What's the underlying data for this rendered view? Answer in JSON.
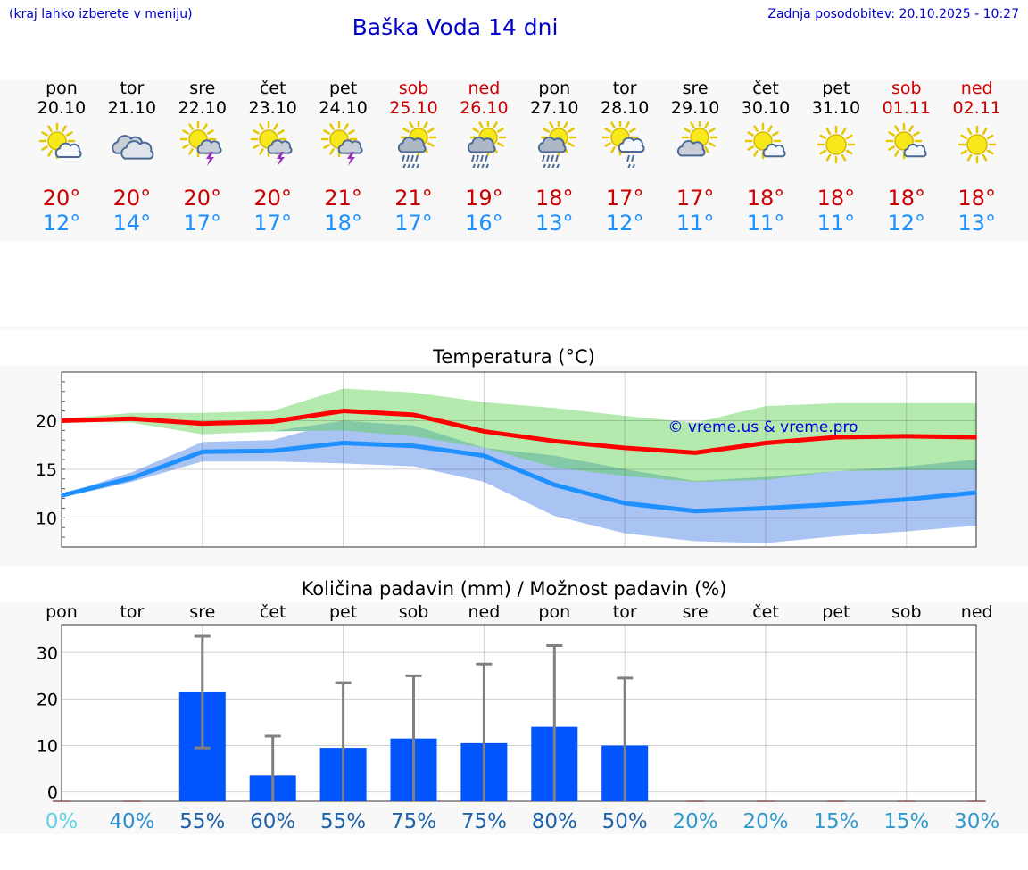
{
  "header": {
    "hint": "(kraj lahko izberete v meniju)",
    "title": "Baška Voda 14 dni",
    "updated": "Zadnja posodobitev: 20.10.2025 - 10:27"
  },
  "days": [
    {
      "name": "pon",
      "date": "20.10",
      "weekend": false,
      "icon": "sun-cloud-icon",
      "tmax": "20°",
      "tmin": "12°"
    },
    {
      "name": "tor",
      "date": "21.10",
      "weekend": false,
      "icon": "overcast-icon",
      "tmax": "20°",
      "tmin": "14°"
    },
    {
      "name": "sre",
      "date": "22.10",
      "weekend": false,
      "icon": "sun-thunder-icon",
      "tmax": "20°",
      "tmin": "17°"
    },
    {
      "name": "čet",
      "date": "23.10",
      "weekend": false,
      "icon": "sun-thunder-icon",
      "tmax": "20°",
      "tmin": "17°"
    },
    {
      "name": "pet",
      "date": "24.10",
      "weekend": false,
      "icon": "sun-thunder-icon",
      "tmax": "21°",
      "tmin": "18°"
    },
    {
      "name": "sob",
      "date": "25.10",
      "weekend": true,
      "icon": "sun-rain-icon",
      "tmax": "21°",
      "tmin": "17°"
    },
    {
      "name": "ned",
      "date": "26.10",
      "weekend": true,
      "icon": "sun-rain-icon",
      "tmax": "19°",
      "tmin": "16°"
    },
    {
      "name": "pon",
      "date": "27.10",
      "weekend": false,
      "icon": "sun-rain-icon",
      "tmax": "18°",
      "tmin": "13°"
    },
    {
      "name": "tor",
      "date": "28.10",
      "weekend": false,
      "icon": "sun-cloud-drizzle-icon",
      "tmax": "17°",
      "tmin": "12°"
    },
    {
      "name": "sre",
      "date": "29.10",
      "weekend": false,
      "icon": "cloud-sun-icon",
      "tmax": "17°",
      "tmin": "11°"
    },
    {
      "name": "čet",
      "date": "30.10",
      "weekend": false,
      "icon": "sun-small-cloud-icon",
      "tmax": "18°",
      "tmin": "11°"
    },
    {
      "name": "pet",
      "date": "31.10",
      "weekend": false,
      "icon": "sun-icon",
      "tmax": "18°",
      "tmin": "11°"
    },
    {
      "name": "sob",
      "date": "01.11",
      "weekend": true,
      "icon": "sun-small-cloud-icon",
      "tmax": "18°",
      "tmin": "12°"
    },
    {
      "name": "ned",
      "date": "02.11",
      "weekend": true,
      "icon": "sun-icon",
      "tmax": "18°",
      "tmin": "13°"
    }
  ],
  "colors": {
    "max_line": "#ff0000",
    "min_line": "#1e90ff",
    "max_band": "#a8e6a1",
    "min_band": "#a9c3f2",
    "overlap_band": "#7ec7a5",
    "bar": "#0055ff",
    "error_bar": "#808080"
  },
  "chart_data": [
    {
      "type": "line",
      "title": "Temperatura (°C)",
      "watermark": "© vreme.us & vreme.pro",
      "ylim": [
        7,
        25
      ],
      "yticks": [
        10,
        15,
        20
      ],
      "grid": true,
      "x": [
        0,
        1,
        2,
        3,
        4,
        5,
        6,
        7,
        8,
        9,
        10,
        11,
        12,
        13
      ],
      "series": [
        {
          "key": "max",
          "values": [
            20.0,
            20.2,
            19.7,
            19.9,
            21.0,
            20.6,
            18.9,
            17.9,
            17.2,
            16.7,
            17.7,
            18.3,
            18.4,
            18.3
          ]
        },
        {
          "key": "min",
          "values": [
            12.3,
            14.1,
            16.8,
            16.9,
            17.7,
            17.4,
            16.4,
            13.4,
            11.5,
            10.7,
            11.0,
            11.4,
            11.9,
            12.6
          ]
        },
        {
          "key": "max_high",
          "values": [
            20.2,
            20.8,
            20.8,
            21.0,
            23.3,
            22.9,
            21.9,
            21.3,
            20.5,
            19.8,
            21.5,
            21.8,
            21.8,
            21.8
          ]
        },
        {
          "key": "max_low",
          "values": [
            19.9,
            19.8,
            18.6,
            18.9,
            19.0,
            18.4,
            17.2,
            15.2,
            14.3,
            13.7,
            13.9,
            14.8,
            14.9,
            14.9
          ]
        },
        {
          "key": "min_high",
          "values": [
            12.4,
            14.7,
            17.8,
            18.0,
            20.0,
            19.5,
            17.2,
            16.4,
            15.0,
            13.8,
            14.2,
            14.8,
            15.3,
            16.0
          ]
        },
        {
          "key": "min_low",
          "values": [
            12.1,
            13.7,
            15.8,
            15.8,
            15.6,
            15.3,
            13.7,
            10.2,
            8.4,
            7.6,
            7.4,
            8.1,
            8.6,
            9.2
          ]
        }
      ]
    },
    {
      "type": "bar",
      "title": "Količina padavin (mm) / Možnost padavin (%)",
      "categories": [
        "pon",
        "tor",
        "sre",
        "čet",
        "pet",
        "sob",
        "ned",
        "pon",
        "tor",
        "sre",
        "čet",
        "pet",
        "sob",
        "ned"
      ],
      "ylim": [
        -2,
        36
      ],
      "yticks": [
        0,
        10,
        20,
        30
      ],
      "grid": true,
      "values": [
        0,
        0,
        21.5,
        3.5,
        9.5,
        11.5,
        10.5,
        14,
        10,
        0,
        0,
        0,
        0,
        0
      ],
      "error_high": [
        0,
        0,
        33.5,
        12,
        23.5,
        25,
        27.5,
        31.5,
        24.5,
        0,
        0,
        0,
        0,
        0
      ],
      "error_low": [
        0,
        0,
        9.5,
        0,
        0,
        0,
        0,
        0,
        0,
        0,
        0,
        0,
        0,
        0
      ],
      "probability": [
        "0%",
        "40%",
        "55%",
        "60%",
        "55%",
        "75%",
        "75%",
        "80%",
        "50%",
        "20%",
        "20%",
        "15%",
        "15%",
        "30%"
      ],
      "probability_colors": [
        "#5fd3e6",
        "#2e8fcf",
        "#1f62a9",
        "#1f62a9",
        "#1f62a9",
        "#1f62a9",
        "#1f62a9",
        "#1f62a9",
        "#1f62a9",
        "#3399cc",
        "#3399cc",
        "#3399cc",
        "#3399cc",
        "#3399cc"
      ]
    }
  ]
}
